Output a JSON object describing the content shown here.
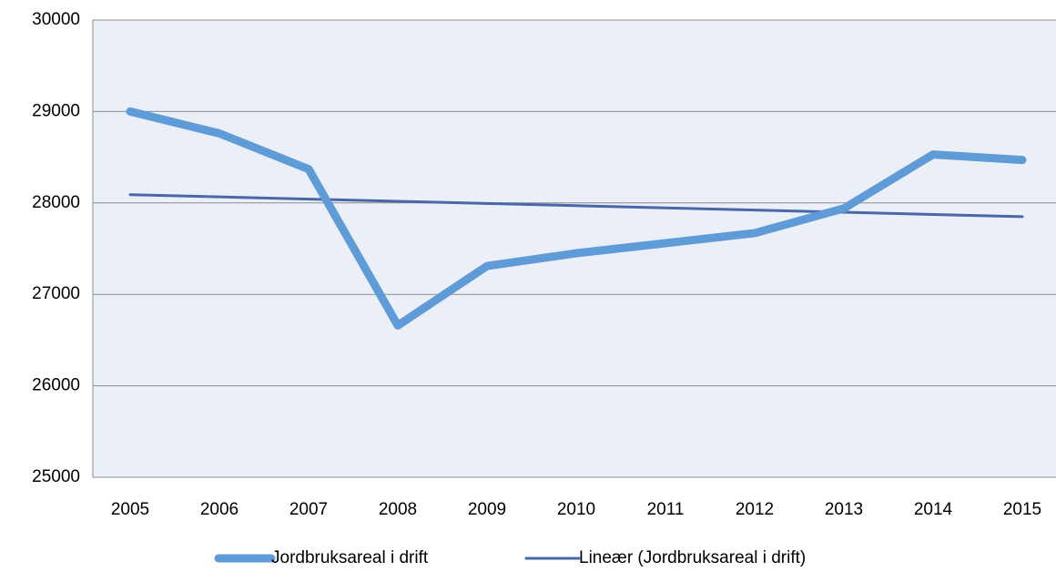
{
  "chart_data": {
    "type": "line",
    "categories": [
      "2005",
      "2006",
      "2007",
      "2008",
      "2009",
      "2010",
      "2011",
      "2012",
      "2013",
      "2014",
      "2015"
    ],
    "series": [
      {
        "name": "Jordbruksareal i drift",
        "color": "#5f9bd6",
        "width": 9,
        "values": [
          29000,
          28760,
          28370,
          26660,
          27310,
          27450,
          27560,
          27670,
          27940,
          28530,
          28470
        ]
      },
      {
        "name": "Lineær (Jordbruksareal i drift)",
        "color": "#4a67a8",
        "width": 3,
        "values": [
          28090,
          28066,
          28042,
          28018,
          27994,
          27970,
          27946,
          27922,
          27898,
          27874,
          27850
        ]
      }
    ],
    "ylim": [
      25000,
      30000
    ],
    "yticks": [
      25000,
      26000,
      27000,
      28000,
      29000,
      30000
    ],
    "grid": true,
    "legend": "bottom"
  }
}
